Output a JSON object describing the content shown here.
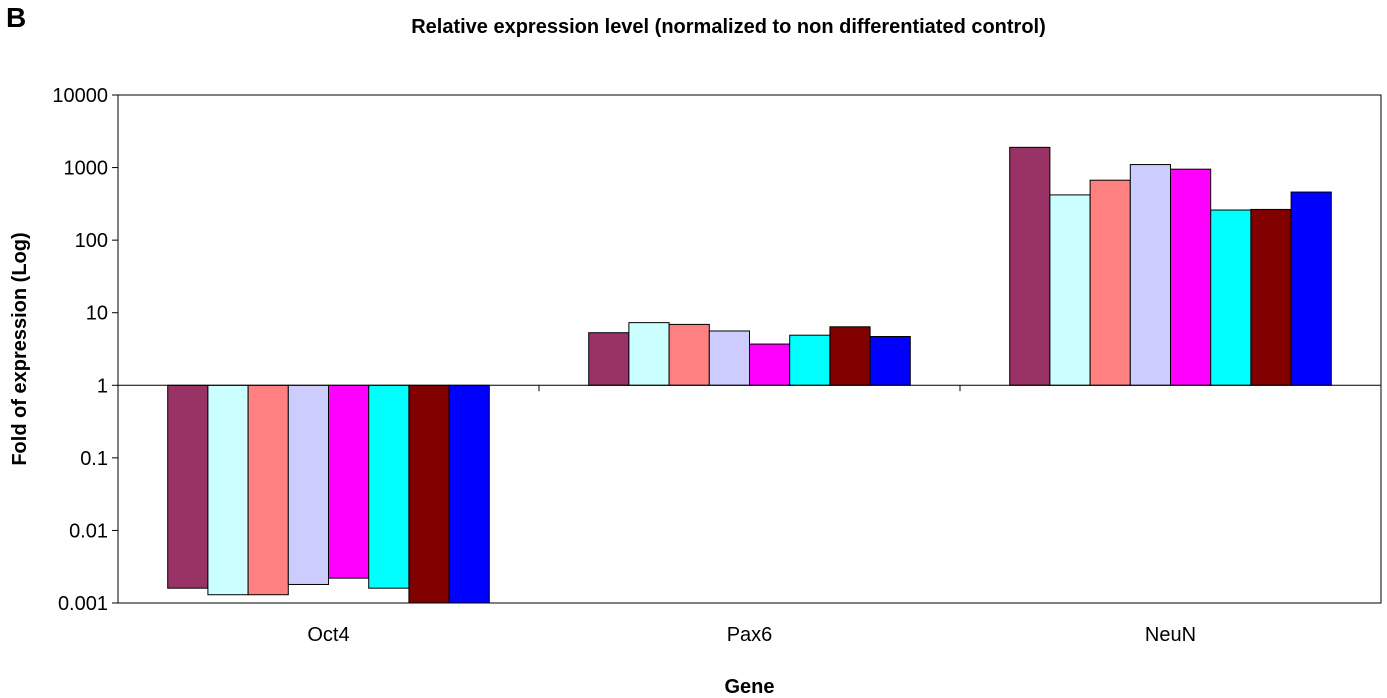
{
  "panel_label": "B",
  "chart_data": {
    "type": "bar",
    "title": "Relative expression level (normalized to  non differentiated control)",
    "xlabel": "Gene",
    "ylabel": "Fold of expression (Log)",
    "yscale": "log",
    "ylim": [
      0.001,
      10000
    ],
    "baseline": 1,
    "yticks": [
      {
        "value": 10000,
        "label": "10000"
      },
      {
        "value": 1000,
        "label": "1000"
      },
      {
        "value": 100,
        "label": "100"
      },
      {
        "value": 10,
        "label": "10"
      },
      {
        "value": 1,
        "label": "1"
      },
      {
        "value": 0.1,
        "label": "0.1"
      },
      {
        "value": 0.01,
        "label": "0.01"
      },
      {
        "value": 0.001,
        "label": "0.001"
      }
    ],
    "categories": [
      "Oct4",
      "Pax6",
      "NeuN"
    ],
    "grid": false,
    "legend": "none",
    "series": [
      {
        "color": "#993366",
        "values": [
          0.0016,
          5.3,
          1900
        ]
      },
      {
        "color": "#CCFFFF",
        "values": [
          0.0013,
          7.3,
          420
        ]
      },
      {
        "color": "#FF8080",
        "values": [
          0.0013,
          6.9,
          670
        ]
      },
      {
        "color": "#CCCCFF",
        "values": [
          0.0018,
          5.6,
          1100
        ]
      },
      {
        "color": "#FF00FF",
        "values": [
          0.0022,
          3.7,
          950
        ]
      },
      {
        "color": "#00FFFF",
        "values": [
          0.0016,
          4.9,
          260
        ]
      },
      {
        "color": "#800000",
        "values": [
          0.001,
          6.4,
          265
        ]
      },
      {
        "color": "#0000FF",
        "values": [
          0.001,
          4.7,
          460
        ]
      }
    ]
  }
}
